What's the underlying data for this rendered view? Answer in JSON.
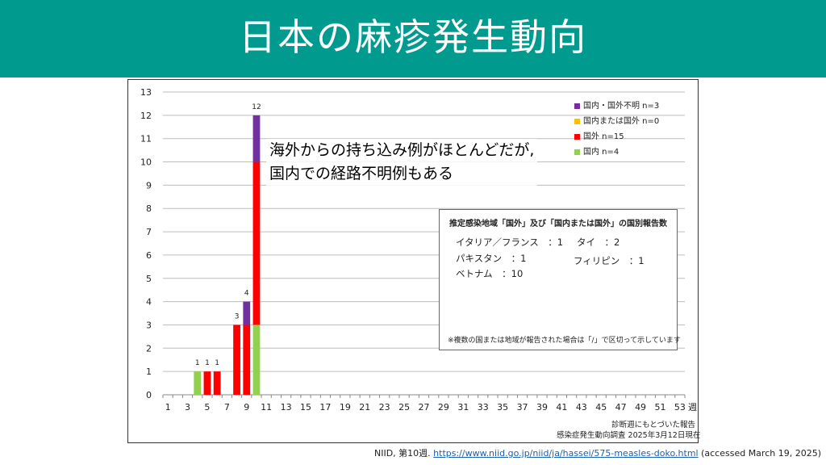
{
  "slide": {
    "title": "日本の麻疹発生動向"
  },
  "chart_data": {
    "type": "bar",
    "stacked": true,
    "x": [
      1,
      2,
      3,
      4,
      5,
      6,
      7,
      8,
      9,
      10,
      11,
      12,
      13,
      14,
      15,
      16,
      17,
      18,
      19,
      20,
      21,
      22,
      23,
      24,
      25,
      26,
      27,
      28,
      29,
      30,
      31,
      32,
      33,
      34,
      35,
      36,
      37,
      38,
      39,
      40,
      41,
      42,
      43,
      44,
      45,
      46,
      47,
      48,
      49,
      50,
      51,
      52,
      53
    ],
    "x_tick_labels": [
      "1",
      "3",
      "5",
      "7",
      "9",
      "11",
      "13",
      "15",
      "17",
      "19",
      "21",
      "23",
      "25",
      "27",
      "29",
      "31",
      "33",
      "35",
      "37",
      "39",
      "41",
      "43",
      "45",
      "47",
      "49",
      "51",
      "53"
    ],
    "x_unit": "週",
    "ylim": [
      0,
      13
    ],
    "y_ticks": [
      0,
      1,
      2,
      3,
      4,
      5,
      6,
      7,
      8,
      9,
      10,
      11,
      12,
      13
    ],
    "grid": true,
    "legend_position": "top-right",
    "series": [
      {
        "name": "国内 n=4",
        "color": "#92d050",
        "values": [
          0,
          0,
          0,
          1,
          0,
          0,
          0,
          0,
          0,
          3,
          0,
          0,
          0,
          0,
          0,
          0,
          0,
          0,
          0,
          0,
          0,
          0,
          0,
          0,
          0,
          0,
          0,
          0,
          0,
          0,
          0,
          0,
          0,
          0,
          0,
          0,
          0,
          0,
          0,
          0,
          0,
          0,
          0,
          0,
          0,
          0,
          0,
          0,
          0,
          0,
          0,
          0,
          0
        ]
      },
      {
        "name": "国外 n=15",
        "color": "#ff0000",
        "values": [
          0,
          0,
          0,
          0,
          1,
          1,
          0,
          3,
          3,
          7,
          0,
          0,
          0,
          0,
          0,
          0,
          0,
          0,
          0,
          0,
          0,
          0,
          0,
          0,
          0,
          0,
          0,
          0,
          0,
          0,
          0,
          0,
          0,
          0,
          0,
          0,
          0,
          0,
          0,
          0,
          0,
          0,
          0,
          0,
          0,
          0,
          0,
          0,
          0,
          0,
          0,
          0,
          0
        ]
      },
      {
        "name": "国内または国外 n=0",
        "color": "#ffc000",
        "values": [
          0,
          0,
          0,
          0,
          0,
          0,
          0,
          0,
          0,
          0,
          0,
          0,
          0,
          0,
          0,
          0,
          0,
          0,
          0,
          0,
          0,
          0,
          0,
          0,
          0,
          0,
          0,
          0,
          0,
          0,
          0,
          0,
          0,
          0,
          0,
          0,
          0,
          0,
          0,
          0,
          0,
          0,
          0,
          0,
          0,
          0,
          0,
          0,
          0,
          0,
          0,
          0,
          0
        ]
      },
      {
        "name": "国内・国外不明 n=3",
        "color": "#7030a0",
        "values": [
          0,
          0,
          0,
          0,
          0,
          0,
          0,
          0,
          1,
          2,
          0,
          0,
          0,
          0,
          0,
          0,
          0,
          0,
          0,
          0,
          0,
          0,
          0,
          0,
          0,
          0,
          0,
          0,
          0,
          0,
          0,
          0,
          0,
          0,
          0,
          0,
          0,
          0,
          0,
          0,
          0,
          0,
          0,
          0,
          0,
          0,
          0,
          0,
          0,
          0,
          0,
          0,
          0
        ]
      }
    ],
    "legend_order": [
      3,
      2,
      1,
      0
    ],
    "totals_labels": [
      {
        "x": 4,
        "label": "1"
      },
      {
        "x": 5,
        "label": "1"
      },
      {
        "x": 6,
        "label": "1"
      },
      {
        "x": 8,
        "label": "3"
      },
      {
        "x": 9,
        "label": "4"
      },
      {
        "x": 10,
        "label": "12"
      }
    ]
  },
  "callout": {
    "line1": "海外からの持ち込み例がほとんどだが,",
    "line2": "国内での経路不明例もある"
  },
  "infobox": {
    "title": "推定感染地域「国外」及び「国内または国外」の国別報告数",
    "italy_france": "イタリア／フランス　：1",
    "thailand": "タイ　：2",
    "pakistan": "パキスタン　：1",
    "philippines": "フィリピン　：1",
    "vietnam": "ベトナム　：10",
    "note": "※複数の国または地域が報告された場合は「/」で区切って示しています"
  },
  "footer": {
    "line1": "診断週にもとづいた報告",
    "line2": "感染症発生動向調査 2025年3月12日現在"
  },
  "citation": {
    "prefix": "NIID, 第10週. ",
    "url": "https://www.niid.go.jp/niid/ja/hassei/575-measles-doko.html",
    "suffix": " (accessed March 19, 2025)"
  }
}
